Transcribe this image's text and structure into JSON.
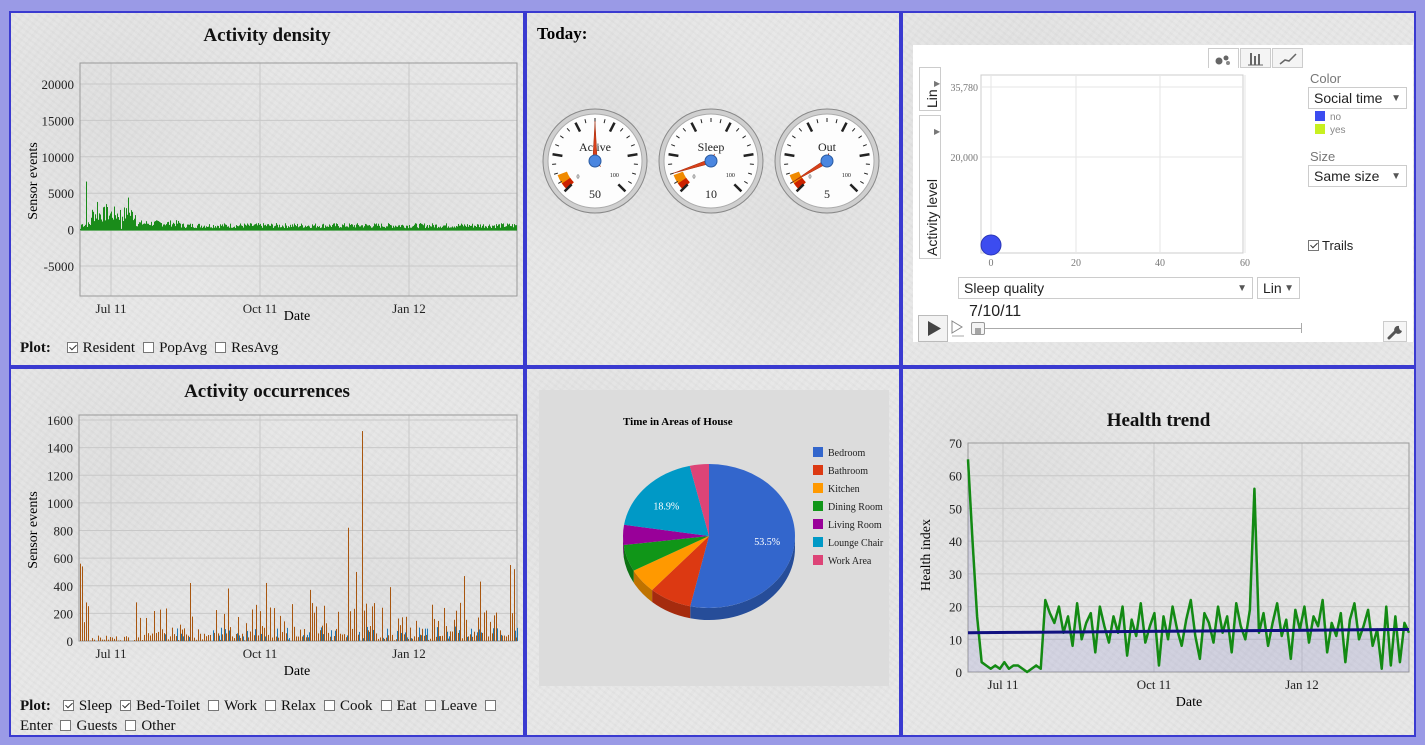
{
  "density": {
    "title": "Activity density",
    "ylabel": "Sensor events",
    "xlabel": "Date",
    "yticks": [
      "20000",
      "15000",
      "10000",
      "5000",
      "0",
      "-5000"
    ],
    "xticks": [
      "Jul 11",
      "Oct 11",
      "Jan 12"
    ],
    "plot_label": "Plot:",
    "options": [
      {
        "label": "Resident",
        "checked": true
      },
      {
        "label": "PopAvg",
        "checked": false
      },
      {
        "label": "ResAvg",
        "checked": false
      }
    ]
  },
  "today": {
    "title": "Today:",
    "gauges": [
      {
        "label": "Active",
        "value": "50",
        "level": 50
      },
      {
        "label": "Sleep",
        "value": "10",
        "level": 10
      },
      {
        "label": "Out",
        "value": "5",
        "level": 5
      }
    ],
    "scale_min": "0",
    "scale_max": "100"
  },
  "motion": {
    "yticks": [
      "35,780",
      "20,000"
    ],
    "xticks": [
      "0",
      "20",
      "40",
      "60"
    ],
    "y_scale": "Lin",
    "y_axis": "Activity level",
    "x_axis": "Sleep quality",
    "x_scale": "Lin",
    "date": "7/10/11",
    "color_label": "Color",
    "color_value": "Social time",
    "legend": [
      {
        "label": "no",
        "color": "#3c4cf0"
      },
      {
        "label": "yes",
        "color": "#c8f020"
      }
    ],
    "size_label": "Size",
    "size_value": "Same size",
    "trails_label": "Trails",
    "trails_checked": true
  },
  "occurrences": {
    "title": "Activity occurrences",
    "ylabel": "Sensor events",
    "xlabel": "Date",
    "yticks": [
      "1600",
      "1400",
      "1200",
      "1000",
      "800",
      "600",
      "400",
      "200",
      "0"
    ],
    "xticks": [
      "Jul 11",
      "Oct 11",
      "Jan 12"
    ],
    "plot_label": "Plot:",
    "options": [
      {
        "label": "Sleep",
        "checked": true
      },
      {
        "label": "Bed-Toilet",
        "checked": true
      },
      {
        "label": "Work",
        "checked": false
      },
      {
        "label": "Relax",
        "checked": false
      },
      {
        "label": "Cook",
        "checked": false
      },
      {
        "label": "Eat",
        "checked": false
      },
      {
        "label": "Leave",
        "checked": false
      },
      {
        "label": "Enter",
        "checked": false
      },
      {
        "label": "Guests",
        "checked": false
      },
      {
        "label": "Other",
        "checked": false
      }
    ]
  },
  "chart_data": [
    {
      "type": "pie",
      "title": "Time in Areas of House",
      "categories": [
        "Bedroom",
        "Bathroom",
        "Kitchen",
        "Dining Room",
        "Living Room",
        "Lounge Chair",
        "Work Area"
      ],
      "values": [
        53.5,
        8.0,
        5.5,
        6.0,
        4.5,
        18.9,
        3.6
      ],
      "data_labels": [
        "53.5%",
        "",
        "",
        "",
        "",
        "18.9%",
        ""
      ],
      "colors": [
        "#3366cc",
        "#dc3912",
        "#ff9900",
        "#109618",
        "#990099",
        "#0099c6",
        "#dd4477"
      ]
    },
    {
      "type": "line",
      "title": "Health trend",
      "xlabel": "Date",
      "ylabel": "Health index",
      "ylim": [
        0,
        70
      ],
      "yticks": [
        "0",
        "10",
        "20",
        "30",
        "40",
        "50",
        "60",
        "70"
      ],
      "xticks": [
        "Jul 11",
        "Oct 11",
        "Jan 12"
      ],
      "series": [
        {
          "values": [
            65,
            40,
            17,
            3,
            2,
            1,
            2,
            1,
            3,
            1,
            2,
            2,
            1,
            0,
            1,
            2,
            1,
            22,
            18,
            15,
            20,
            12,
            17,
            8,
            21,
            10,
            15,
            18,
            6,
            20,
            14,
            9,
            17,
            12,
            20,
            5,
            16,
            11,
            21,
            9,
            14,
            18,
            2,
            17,
            10,
            20,
            13,
            8,
            16,
            22,
            11,
            4,
            18,
            15,
            9,
            20,
            12,
            17,
            6,
            21,
            14,
            10,
            19,
            56,
            12,
            18,
            8,
            15,
            21,
            11,
            16,
            4,
            19,
            13,
            20,
            9,
            17,
            14,
            22,
            6,
            15,
            11,
            18,
            3,
            16,
            21,
            10,
            14,
            19,
            8,
            13,
            1,
            20,
            2,
            17,
            3,
            15,
            12
          ]
        },
        {
          "values": [
            12,
            12.1,
            12.2,
            12.3,
            12.4,
            12.5,
            12.6,
            12.7,
            12.8,
            12.9,
            13
          ]
        }
      ]
    }
  ]
}
